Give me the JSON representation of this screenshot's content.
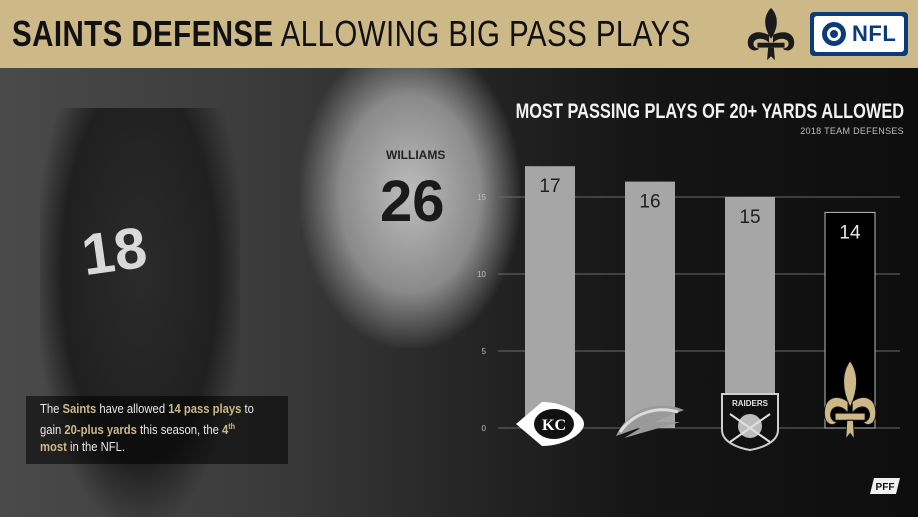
{
  "header": {
    "title_bold": "SAINTS DEFENSE",
    "title_light": "ALLOWING BIG PASS PLAYS",
    "badge_text": "NFL"
  },
  "photo": {
    "jersey_left": "18",
    "jersey_right": "26",
    "nameplate": "WILLIAMS"
  },
  "caption": {
    "t1": "The ",
    "t2": "Saints",
    "t3": " have allowed ",
    "t4": "14 pass plays",
    "t5": " to gain ",
    "t6": "20-plus yards",
    "t7": " this season, the ",
    "t8": "4",
    "t8sup": "th",
    "t9": " most",
    "t10": " in the NFL."
  },
  "chart_data": {
    "type": "bar",
    "title": "MOST PASSING PLAYS OF 20+ YARDS ALLOWED",
    "subtitle": "2018 TEAM DEFENSES",
    "categories": [
      "Chiefs",
      "Chargers",
      "Raiders",
      "Saints"
    ],
    "values": [
      17,
      16,
      15,
      14
    ],
    "data_labels": [
      "17",
      "16",
      "15",
      "14"
    ],
    "yticks": [
      "0",
      "5",
      "10",
      "15"
    ],
    "ylim": [
      0,
      20
    ],
    "grid": true,
    "bar_colors": [
      "#a6a6a6",
      "#a6a6a6",
      "#a6a6a6",
      "#000000"
    ],
    "highlight_outline": "#cdb888",
    "icons": [
      "chiefs-logo-icon",
      "chargers-logo-icon",
      "raiders-logo-icon",
      "saints-logo-icon"
    ],
    "raiders_logo_text": "RAIDERS",
    "chiefs_logo_text": "KC"
  },
  "colors": {
    "gold": "#cdb888",
    "nfl_blue": "#0b3b78"
  },
  "footer": {
    "logo_text": "PFF"
  }
}
